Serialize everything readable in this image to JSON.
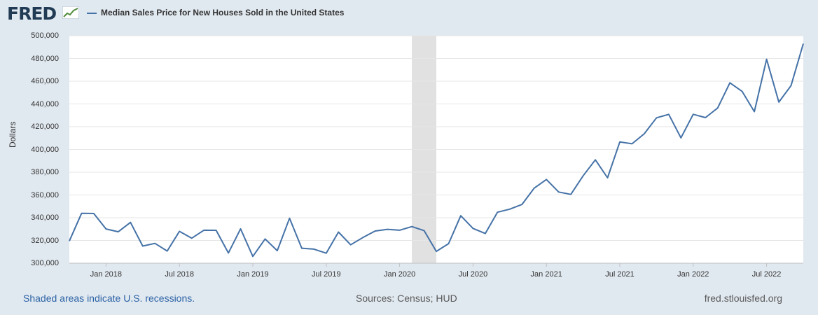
{
  "header": {
    "logo_text": "FRED",
    "series_title": "Median Sales Price for New Houses Sold in the United States"
  },
  "footer": {
    "recession_note": "Shaded areas indicate U.S. recessions.",
    "sources": "Sources: Census; HUD",
    "site": "fred.stlouisfed.org"
  },
  "colors": {
    "line": "#4572a7",
    "recession": "#e1e1e1",
    "grid": "#e6e6e6",
    "page_bg": "#e1e9f0"
  },
  "chart_data": {
    "type": "line",
    "title": "Median Sales Price for New Houses Sold in the United States",
    "ylabel": "Dollars",
    "xlabel": "",
    "ylim": [
      300000,
      500000
    ],
    "yticks": [
      300000,
      320000,
      340000,
      360000,
      380000,
      400000,
      420000,
      440000,
      460000,
      480000,
      500000
    ],
    "ytick_labels": [
      "300,000",
      "320,000",
      "340,000",
      "360,000",
      "380,000",
      "400,000",
      "420,000",
      "440,000",
      "460,000",
      "480,000",
      "500,000"
    ],
    "x_start": "2017-10",
    "xticks": [
      {
        "label": "Jan 2018",
        "index": 3
      },
      {
        "label": "Jul 2018",
        "index": 9
      },
      {
        "label": "Jan 2019",
        "index": 15
      },
      {
        "label": "Jul 2019",
        "index": 21
      },
      {
        "label": "Jan 2020",
        "index": 27
      },
      {
        "label": "Jul 2020",
        "index": 33
      },
      {
        "label": "Jan 2021",
        "index": 39
      },
      {
        "label": "Jul 2021",
        "index": 45
      },
      {
        "label": "Jan 2022",
        "index": 51
      },
      {
        "label": "Jul 2022",
        "index": 57
      }
    ],
    "recessions": [
      {
        "start_index": 28,
        "end_index": 30,
        "label": "Feb 2020 - Apr 2020"
      }
    ],
    "series": [
      {
        "name": "Median Sales Price for New Houses Sold in the United States",
        "values": [
          319500,
          343900,
          343700,
          330100,
          327600,
          335900,
          315100,
          317400,
          310700,
          328000,
          322000,
          329000,
          328900,
          309000,
          330200,
          306000,
          321300,
          311000,
          339500,
          313200,
          312400,
          308800,
          327400,
          316200,
          322600,
          328300,
          329800,
          329000,
          332200,
          328700,
          310400,
          317200,
          341700,
          330600,
          326100,
          344800,
          347500,
          351600,
          366000,
          373600,
          362600,
          360500,
          376800,
          390900,
          375100,
          406600,
          405000,
          413800,
          427800,
          430800,
          410200,
          430900,
          428000,
          436400,
          458600,
          451000,
          433200,
          479300,
          441600,
          456100,
          493000
        ]
      }
    ]
  }
}
